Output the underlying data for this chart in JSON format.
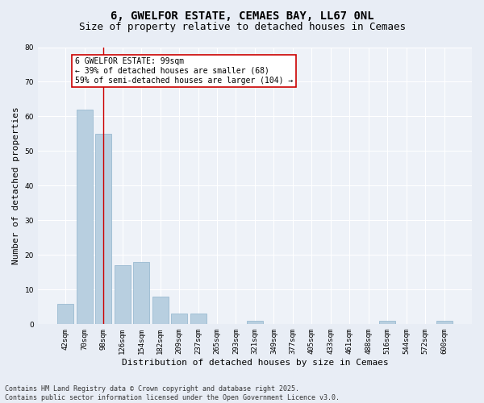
{
  "title": "6, GWELFOR ESTATE, CEMAES BAY, LL67 0NL",
  "subtitle": "Size of property relative to detached houses in Cemaes",
  "xlabel": "Distribution of detached houses by size in Cemaes",
  "ylabel": "Number of detached properties",
  "bar_labels": [
    "42sqm",
    "70sqm",
    "98sqm",
    "126sqm",
    "154sqm",
    "182sqm",
    "209sqm",
    "237sqm",
    "265sqm",
    "293sqm",
    "321sqm",
    "349sqm",
    "377sqm",
    "405sqm",
    "433sqm",
    "461sqm",
    "488sqm",
    "516sqm",
    "544sqm",
    "572sqm",
    "600sqm"
  ],
  "bar_values": [
    6,
    62,
    55,
    17,
    18,
    8,
    3,
    3,
    0,
    0,
    1,
    0,
    0,
    0,
    0,
    0,
    0,
    1,
    0,
    0,
    1
  ],
  "bar_color": "#b8cfe0",
  "bar_edge_color": "#8fb3cc",
  "vline_x": 2,
  "annotation_text": "6 GWELFOR ESTATE: 99sqm\n← 39% of detached houses are smaller (68)\n59% of semi-detached houses are larger (104) →",
  "annotation_box_color": "#ffffff",
  "annotation_box_edge_color": "#cc0000",
  "vline_color": "#cc0000",
  "ylim": [
    0,
    80
  ],
  "yticks": [
    0,
    10,
    20,
    30,
    40,
    50,
    60,
    70,
    80
  ],
  "footer": "Contains HM Land Registry data © Crown copyright and database right 2025.\nContains public sector information licensed under the Open Government Licence v3.0.",
  "bg_color": "#e8edf5",
  "plot_bg_color": "#eef2f8",
  "grid_color": "#ffffff",
  "title_fontsize": 10,
  "subtitle_fontsize": 9,
  "axis_label_fontsize": 8,
  "tick_fontsize": 6.5,
  "annotation_fontsize": 7,
  "footer_fontsize": 6
}
